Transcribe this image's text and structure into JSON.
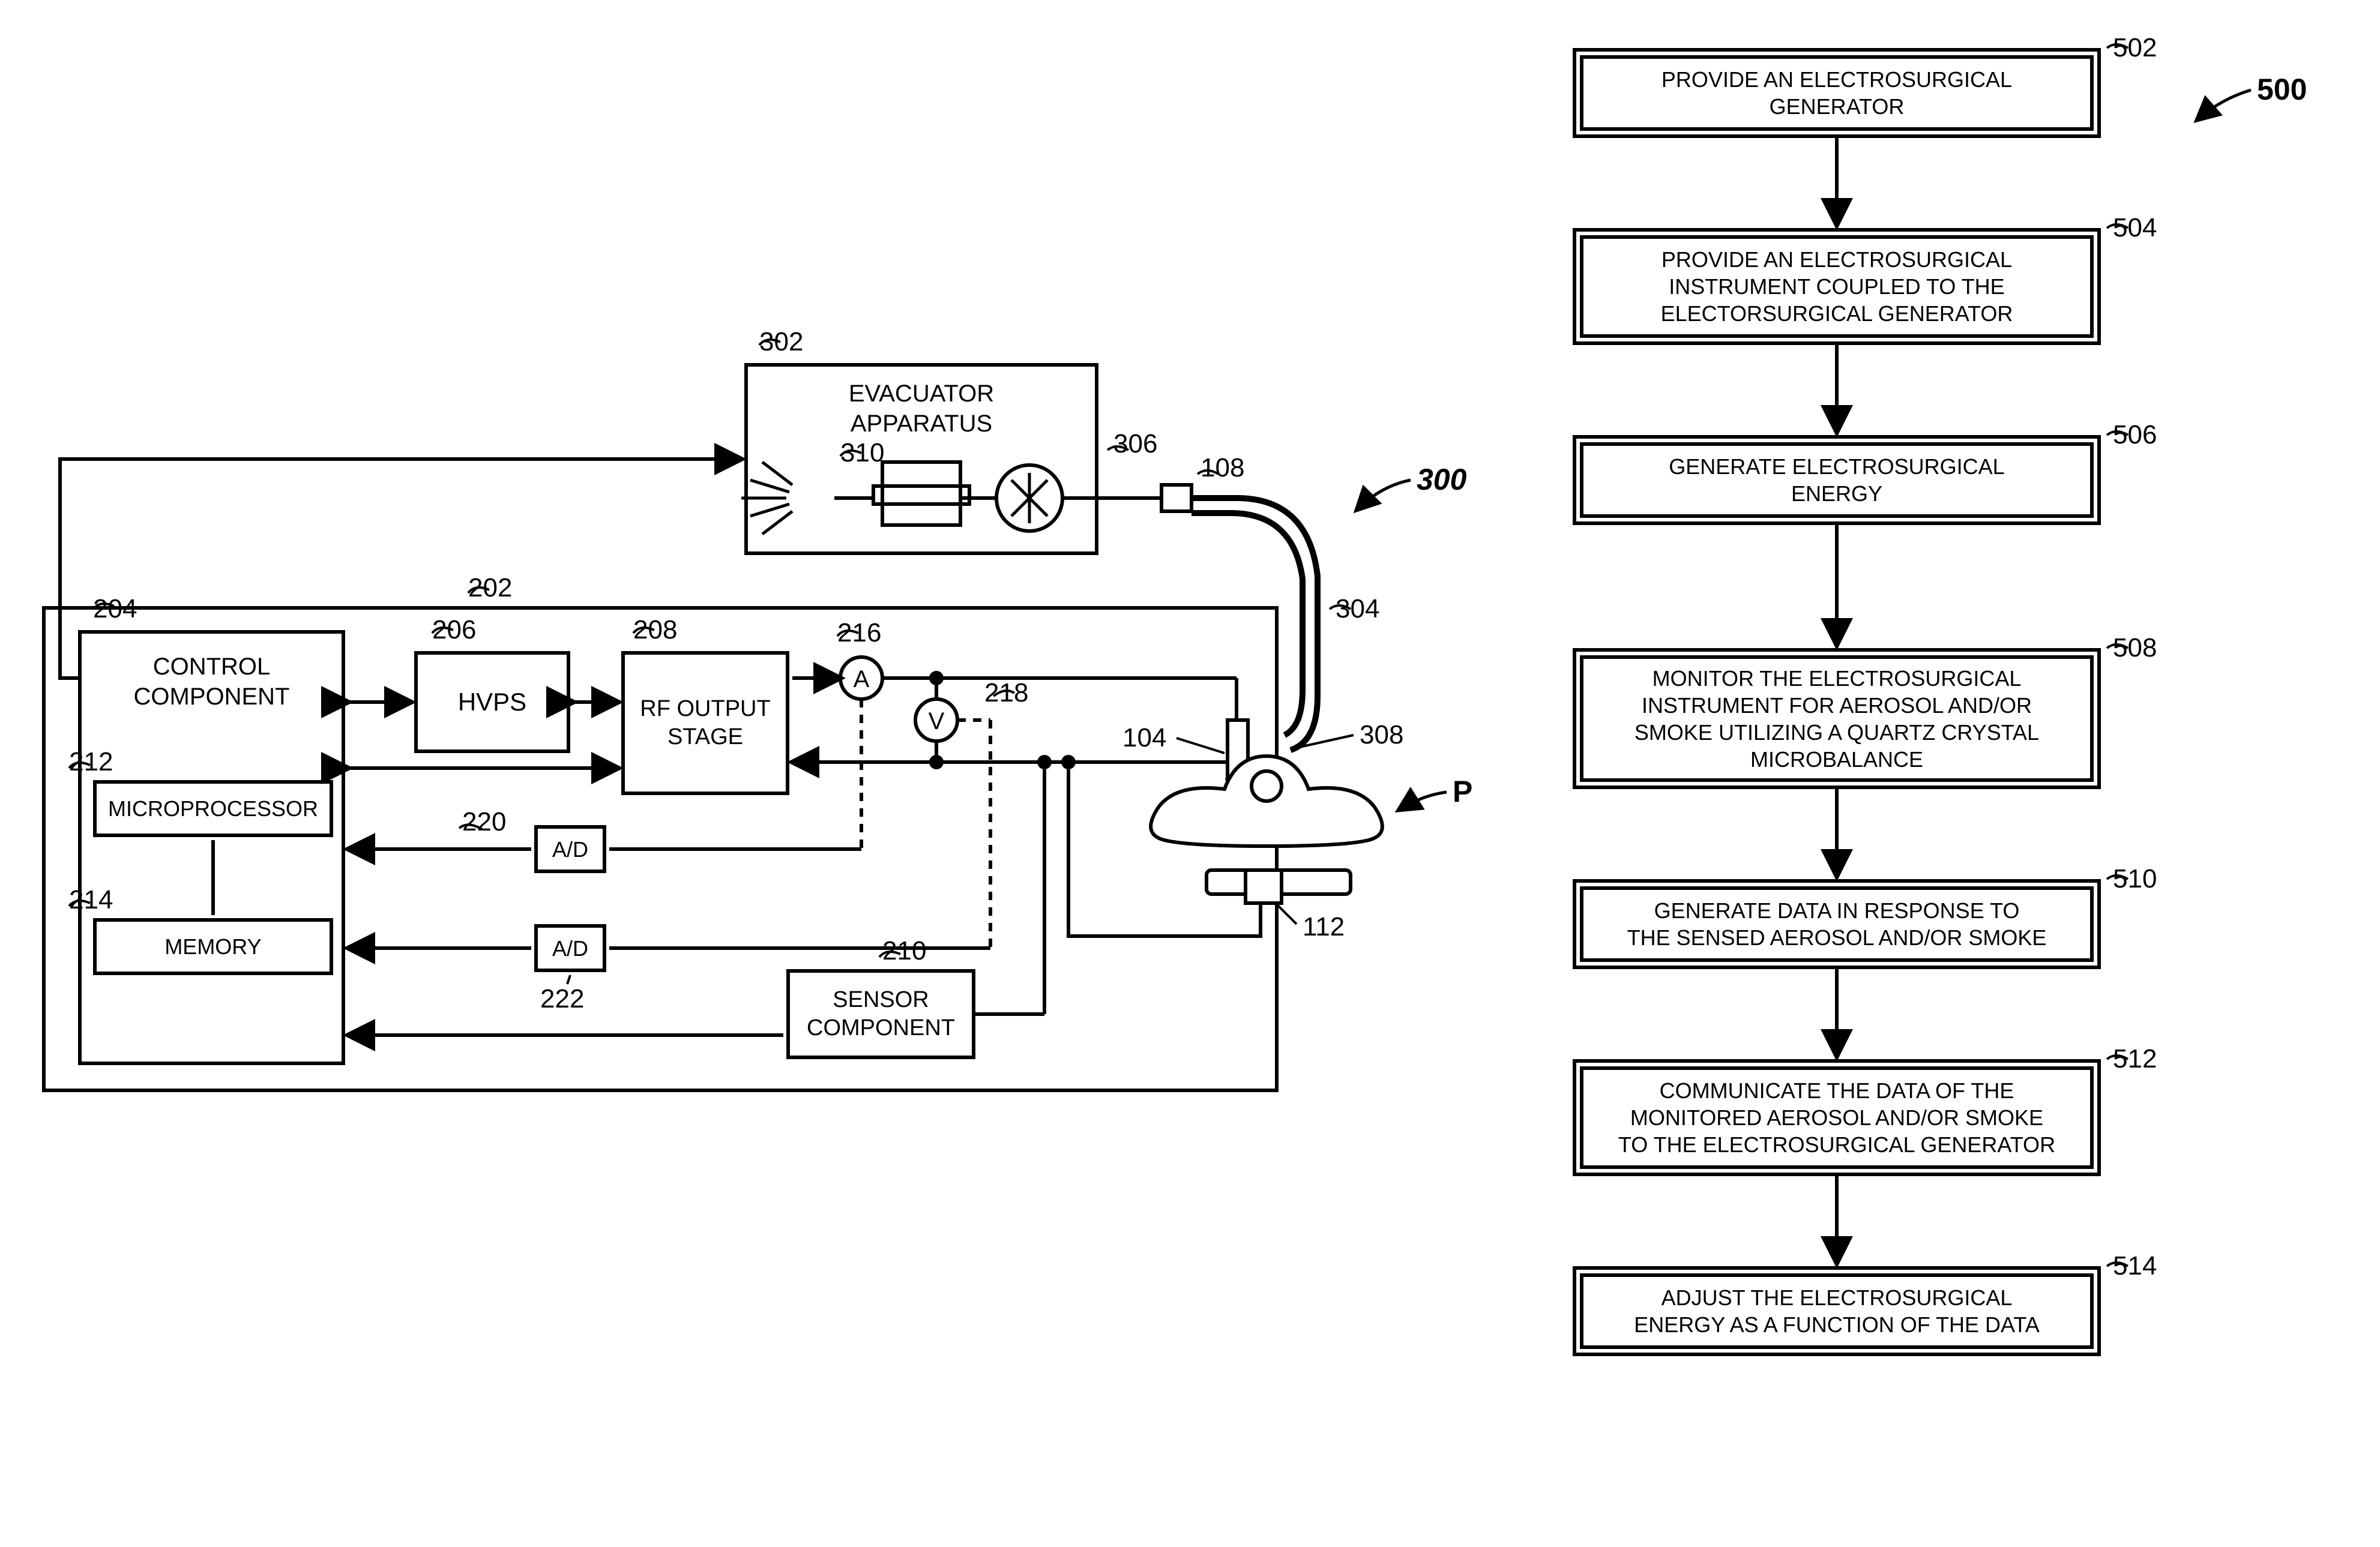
{
  "left": {
    "refMain": "300",
    "evacuator": {
      "title": "EVACUATOR\nAPPARATUS",
      "ref": "302",
      "filterRef": "310",
      "fanRef": "306"
    },
    "tubeRef": "108",
    "hoseRef": "304",
    "instrumentRef": "104",
    "nozzleRef": "308",
    "patientRef": "P",
    "padRef": "112",
    "generatorRef": "202",
    "control": {
      "title": "CONTROL\nCOMPONENT",
      "ref": "204",
      "micro": "MICROPROCESSOR",
      "microRef": "212",
      "memory": "MEMORY",
      "memRef": "214"
    },
    "hvps": {
      "title": "HVPS",
      "ref": "206"
    },
    "rf": {
      "title": "RF OUTPUT\nSTAGE",
      "ref": "208"
    },
    "ammeter": {
      "letter": "A",
      "ref": "216"
    },
    "voltmeter": {
      "letter": "V",
      "ref": "218"
    },
    "ad1": {
      "title": "A/D",
      "ref": "220"
    },
    "ad2": {
      "title": "A/D",
      "ref": "222"
    },
    "sensor": {
      "title": "SENSOR\nCOMPONENT",
      "ref": "210"
    }
  },
  "right": {
    "refMain": "500",
    "steps": [
      {
        "ref": "502",
        "text": "PROVIDE AN ELECTROSURGICAL\nGENERATOR"
      },
      {
        "ref": "504",
        "text": "PROVIDE AN ELECTROSURGICAL\nINSTRUMENT COUPLED TO THE\nELECTORSURGICAL GENERATOR"
      },
      {
        "ref": "506",
        "text": "GENERATE ELECTROSURGICAL\nENERGY"
      },
      {
        "ref": "508",
        "text": "MONITOR THE ELECTROSURGICAL\nINSTRUMENT FOR AEROSOL AND/OR\nSMOKE UTILIZING A QUARTZ CRYSTAL\nMICROBALANCE"
      },
      {
        "ref": "510",
        "text": "GENERATE DATA IN RESPONSE TO\nTHE SENSED AEROSOL AND/OR SMOKE"
      },
      {
        "ref": "512",
        "text": "COMMUNICATE THE DATA OF THE\nMONITORED AEROSOL AND/OR SMOKE\nTO THE ELECTROSURGICAL GENERATOR"
      },
      {
        "ref": "514",
        "text": "ADJUST THE ELECTROSURGICAL\nENERGY AS A FUNCTION OF THE DATA"
      }
    ]
  },
  "style": {
    "stroke": "#000000",
    "strokeWidth": 6,
    "flowBoxWidth": 880,
    "flowBoxLeft": 2620
  }
}
